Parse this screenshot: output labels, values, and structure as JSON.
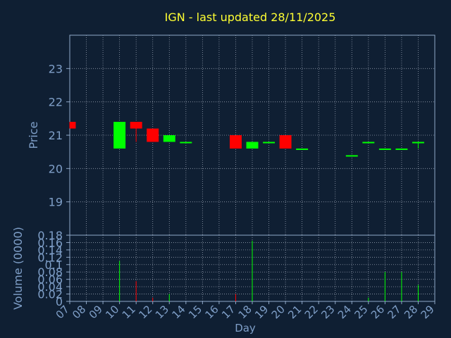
{
  "title": "IGN - last updated 28/11/2025",
  "colors": {
    "background": "#0f1f33",
    "title": "#ffff33",
    "axis_text": "#7f9fc8",
    "axis": "#8fa8c8",
    "grid": "#c0c8d8",
    "up": "#00ff00",
    "down": "#ff0000"
  },
  "chart_data": [
    {
      "type": "candlestick",
      "ylabel": "Price",
      "ylim": [
        18,
        24
      ],
      "yticks": [
        19,
        20,
        21,
        22,
        23
      ],
      "xlim": [
        7,
        29
      ],
      "grid": true,
      "candles": [
        {
          "day": 7,
          "open": 21.4,
          "close": 21.2,
          "high": 21.4,
          "low": 21.2
        },
        {
          "day": 10,
          "open": 20.6,
          "close": 21.4,
          "high": 21.4,
          "low": 20.6
        },
        {
          "day": 11,
          "open": 21.4,
          "close": 21.2,
          "high": 21.4,
          "low": 20.8
        },
        {
          "day": 12,
          "open": 21.2,
          "close": 20.8,
          "high": 21.2,
          "low": 20.8
        },
        {
          "day": 13,
          "open": 20.8,
          "close": 21.0,
          "high": 21.0,
          "low": 20.8
        },
        {
          "day": 14,
          "open": 20.8,
          "close": 20.8,
          "high": 20.8,
          "low": 20.8
        },
        {
          "day": 17,
          "open": 21.0,
          "close": 20.6,
          "high": 21.0,
          "low": 20.6
        },
        {
          "day": 18,
          "open": 20.6,
          "close": 20.8,
          "high": 20.8,
          "low": 20.6
        },
        {
          "day": 19,
          "open": 20.8,
          "close": 20.8,
          "high": 20.8,
          "low": 20.8
        },
        {
          "day": 20,
          "open": 21.0,
          "close": 20.6,
          "high": 21.0,
          "low": 20.6
        },
        {
          "day": 21,
          "open": 20.6,
          "close": 20.6,
          "high": 20.6,
          "low": 20.6
        },
        {
          "day": 24,
          "open": 20.4,
          "close": 20.4,
          "high": 20.4,
          "low": 20.4
        },
        {
          "day": 25,
          "open": 20.8,
          "close": 20.8,
          "high": 20.8,
          "low": 20.8
        },
        {
          "day": 26,
          "open": 20.6,
          "close": 20.6,
          "high": 20.6,
          "low": 20.6
        },
        {
          "day": 27,
          "open": 20.6,
          "close": 20.6,
          "high": 20.6,
          "low": 20.6
        },
        {
          "day": 28,
          "open": 20.8,
          "close": 20.8,
          "high": 20.8,
          "low": 20.6
        }
      ]
    },
    {
      "type": "bar",
      "ylabel": "Volume (0000)",
      "xlabel": "Day",
      "ylim": [
        0,
        0.18
      ],
      "ytick_labels": [
        "0",
        "0.02",
        "0.04",
        "0.06",
        "0.08",
        "0.1",
        "0.12",
        "0.14",
        "0.16",
        "0.18"
      ],
      "xtick_labels": [
        "07",
        "08",
        "09",
        "10",
        "11",
        "12",
        "13",
        "14",
        "15",
        "16",
        "17",
        "18",
        "19",
        "20",
        "21",
        "22",
        "23",
        "24",
        "25",
        "26",
        "27",
        "28",
        "29"
      ],
      "grid": true,
      "bars": [
        {
          "day": 7,
          "value": 0.0,
          "direction": "down"
        },
        {
          "day": 10,
          "value": 0.11,
          "direction": "up"
        },
        {
          "day": 11,
          "value": 0.055,
          "direction": "down"
        },
        {
          "day": 12,
          "value": 0.01,
          "direction": "down"
        },
        {
          "day": 13,
          "value": 0.02,
          "direction": "up"
        },
        {
          "day": 14,
          "value": 0.0,
          "direction": "up"
        },
        {
          "day": 17,
          "value": 0.02,
          "direction": "down"
        },
        {
          "day": 18,
          "value": 0.165,
          "direction": "up"
        },
        {
          "day": 19,
          "value": 0.0,
          "direction": "up"
        },
        {
          "day": 20,
          "value": 0.0,
          "direction": "down"
        },
        {
          "day": 21,
          "value": 0.0,
          "direction": "up"
        },
        {
          "day": 24,
          "value": 0.0,
          "direction": "up"
        },
        {
          "day": 25,
          "value": 0.01,
          "direction": "up"
        },
        {
          "day": 26,
          "value": 0.08,
          "direction": "up"
        },
        {
          "day": 27,
          "value": 0.08,
          "direction": "up"
        },
        {
          "day": 28,
          "value": 0.045,
          "direction": "up"
        }
      ]
    }
  ]
}
